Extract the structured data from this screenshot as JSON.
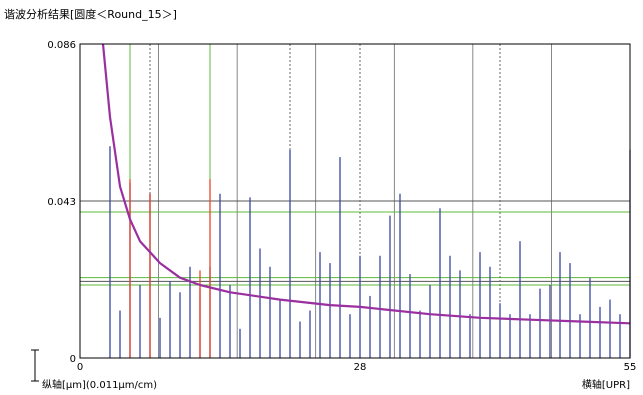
{
  "title": "谐波分析结果[圆度＜Round_15＞]",
  "chart_data": {
    "type": "bar",
    "title": "谐波分析结果[圆度＜Round_15＞]",
    "xlabel": "横轴[UPR]",
    "ylabel": "纵轴[μm](0.011μm/cm)",
    "xlim": [
      0,
      55
    ],
    "ylim": [
      0,
      0.086
    ],
    "x_ticks": [
      "0",
      "28",
      "55"
    ],
    "y_ticks": [
      "0",
      "0.043",
      "0.086"
    ],
    "grid": true,
    "colors": {
      "bars": "#3a46a0",
      "highlight_bars": "#e8472a",
      "curve": "#9a2fa0",
      "green_lines": "#5cb836",
      "grid_solid": "#555555",
      "grid_dashed": "#666666"
    },
    "series": [
      {
        "values_by_harmonic": [
          [
            3,
            0.058
          ],
          [
            4,
            0.013
          ],
          [
            5,
            0.048
          ],
          [
            6,
            0.02
          ],
          [
            7,
            0.045
          ],
          [
            8,
            0.011
          ],
          [
            9,
            0.021
          ],
          [
            10,
            0.018
          ],
          [
            11,
            0.025
          ],
          [
            12,
            0.019
          ],
          [
            13,
            0.025
          ],
          [
            14,
            0.045
          ],
          [
            15,
            0.02
          ],
          [
            16,
            0.008
          ],
          [
            17,
            0.044
          ],
          [
            18,
            0.03
          ],
          [
            19,
            0.025
          ],
          [
            20,
            0.016
          ],
          [
            21,
            0.057
          ],
          [
            22,
            0.01
          ],
          [
            23,
            0.013
          ],
          [
            24,
            0.029
          ],
          [
            25,
            0.026
          ],
          [
            26,
            0.055
          ],
          [
            27,
            0.012
          ],
          [
            28,
            0.028
          ],
          [
            29,
            0.017
          ],
          [
            30,
            0.028
          ],
          [
            31,
            0.039
          ],
          [
            32,
            0.045
          ],
          [
            33,
            0.023
          ],
          [
            34,
            0.013
          ],
          [
            35,
            0.02
          ],
          [
            36,
            0.041
          ],
          [
            37,
            0.028
          ],
          [
            38,
            0.024
          ],
          [
            39,
            0.012
          ],
          [
            40,
            0.029
          ],
          [
            41,
            0.025
          ],
          [
            42,
            0.015
          ],
          [
            43,
            0.012
          ],
          [
            44,
            0.032
          ],
          [
            45,
            0.012
          ],
          [
            46,
            0.019
          ],
          [
            47,
            0.02
          ],
          [
            48,
            0.029
          ],
          [
            49,
            0.026
          ],
          [
            50,
            0.012
          ],
          [
            51,
            0.022
          ],
          [
            52,
            0.014
          ],
          [
            53,
            0.016
          ],
          [
            54,
            0.012
          ],
          [
            55,
            0.057
          ]
        ]
      },
      {
        "values_by_harmonic": [
          [
            5,
            0.049
          ],
          [
            7,
            0.045
          ],
          [
            12,
            0.024
          ],
          [
            13,
            0.049
          ]
        ]
      }
    ],
    "curve": {
      "points": [
        [
          2.3,
          0.086
        ],
        [
          3,
          0.066
        ],
        [
          4,
          0.047
        ],
        [
          5,
          0.038
        ],
        [
          6,
          0.032
        ],
        [
          7,
          0.029
        ],
        [
          8,
          0.026
        ],
        [
          10,
          0.022
        ],
        [
          12,
          0.02
        ],
        [
          15,
          0.018
        ],
        [
          20,
          0.016
        ],
        [
          25,
          0.0145
        ],
        [
          28,
          0.014
        ],
        [
          35,
          0.012
        ],
        [
          40,
          0.011
        ],
        [
          45,
          0.0105
        ],
        [
          50,
          0.01
        ],
        [
          55,
          0.0095
        ]
      ]
    },
    "horizontal_lines": [
      {
        "y": 0.04,
        "color": "green"
      },
      {
        "y": 0.022,
        "color": "green"
      },
      {
        "y": 0.02,
        "color": "green"
      },
      {
        "y": 0.021,
        "color": "gray"
      },
      {
        "y": 0.043,
        "color": "gray"
      }
    ],
    "vertical_lines": [
      {
        "x": 5,
        "color": "green"
      },
      {
        "x": 13,
        "color": "green"
      },
      {
        "x": 7,
        "style": "dashed"
      },
      {
        "x": 21,
        "style": "dashed"
      },
      {
        "x": 28,
        "style": "dashed"
      },
      {
        "x": 42,
        "style": "dashed"
      }
    ]
  }
}
